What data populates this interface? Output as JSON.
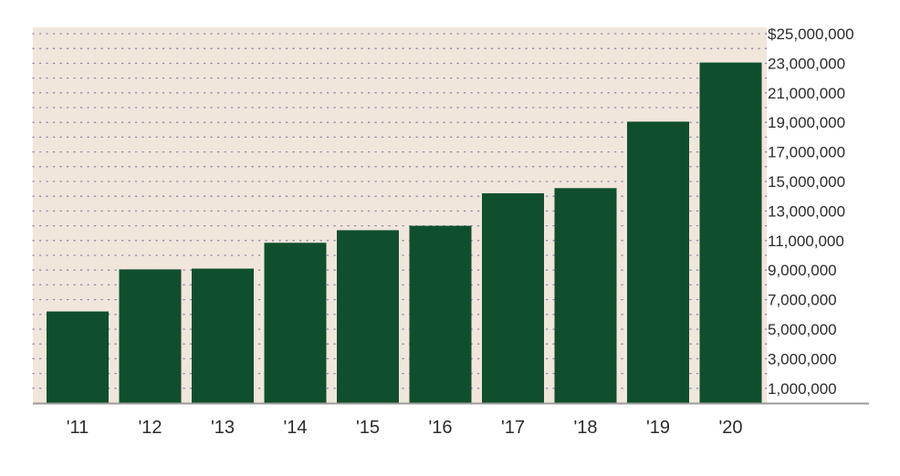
{
  "chart_data": {
    "type": "bar",
    "categories": [
      "'11",
      "'12",
      "'13",
      "'14",
      "'15",
      "'16",
      "'17",
      "'18",
      "'19",
      "'20"
    ],
    "values": [
      6200000,
      9050000,
      9100000,
      10850000,
      11700000,
      12000000,
      14200000,
      14550000,
      19050000,
      23050000
    ],
    "ylim": [
      0,
      25000000
    ],
    "y_ticks": [
      1000000,
      3000000,
      5000000,
      7000000,
      9000000,
      11000000,
      13000000,
      15000000,
      17000000,
      19000000,
      21000000,
      23000000,
      25000000
    ],
    "y_tick_labels": [
      "1,000,000",
      "3,000,000",
      "5,000,000",
      "7,000,000",
      "9,000,000",
      "11,000,000",
      "13,000,000",
      "15,000,000",
      "17,000,000",
      "19,000,000",
      "21,000,000",
      "23,000,000",
      "$25,000,000"
    ],
    "grid": "dotted horizontal lines",
    "y_axis_position": "right",
    "legend": "none",
    "colors": {
      "bar": "#0f4f2e",
      "plot_background": "#f1e6db",
      "grid": "#8f86a6",
      "axis": "#9a9a9a"
    }
  }
}
